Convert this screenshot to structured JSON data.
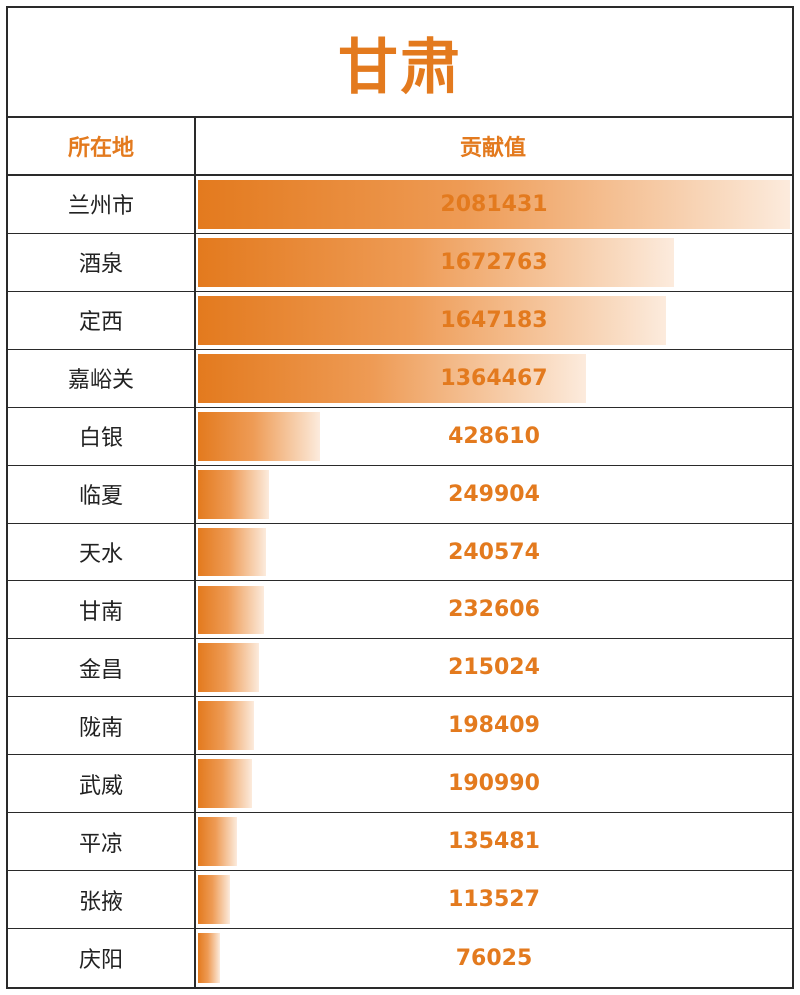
{
  "chart_data": {
    "type": "bar",
    "title": "甘肃",
    "header": {
      "location_label": "所在地",
      "value_label": "贡献值"
    },
    "categories": [
      "兰州市",
      "酒泉",
      "定西",
      "嘉峪关",
      "白银",
      "临夏",
      "天水",
      "甘南",
      "金昌",
      "陇南",
      "武威",
      "平凉",
      "张掖",
      "庆阳"
    ],
    "values": [
      2081431,
      1672763,
      1647183,
      1364467,
      428610,
      249904,
      240574,
      232606,
      215024,
      198409,
      190990,
      135481,
      113527,
      76025
    ],
    "accent_color": "#E37A1E"
  }
}
